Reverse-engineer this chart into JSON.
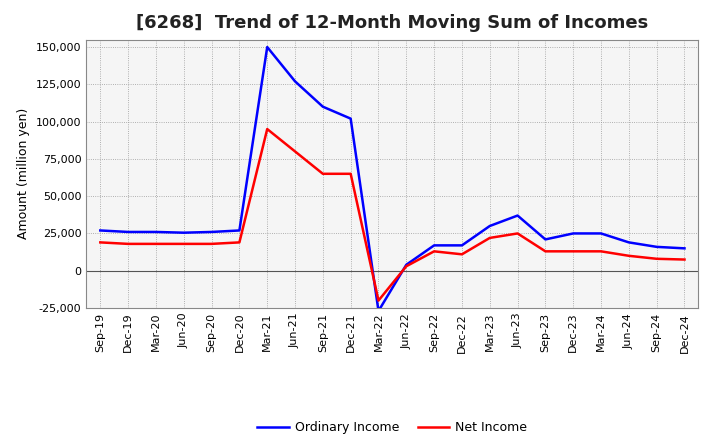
{
  "title": "[6268]  Trend of 12-Month Moving Sum of Incomes",
  "ylabel": "Amount (million yen)",
  "background_color": "#ffffff",
  "plot_bg_color": "#f5f5f5",
  "grid_color": "#999999",
  "ylim": [
    -25000,
    155000
  ],
  "yticks": [
    -25000,
    0,
    25000,
    50000,
    75000,
    100000,
    125000,
    150000
  ],
  "x_labels": [
    "Sep-19",
    "Dec-19",
    "Mar-20",
    "Jun-20",
    "Sep-20",
    "Dec-20",
    "Mar-21",
    "Jun-21",
    "Sep-21",
    "Dec-21",
    "Mar-22",
    "Jun-22",
    "Sep-22",
    "Dec-22",
    "Mar-23",
    "Jun-23",
    "Sep-23",
    "Dec-23",
    "Mar-24",
    "Jun-24",
    "Sep-24",
    "Dec-24"
  ],
  "ordinary_income": [
    27000,
    26000,
    26000,
    25500,
    26000,
    27000,
    150000,
    127000,
    110000,
    102000,
    -27000,
    4000,
    17000,
    17000,
    30000,
    37000,
    21000,
    25000,
    25000,
    19000,
    16000,
    15000
  ],
  "net_income": [
    19000,
    18000,
    18000,
    18000,
    18000,
    19000,
    95000,
    80000,
    65000,
    65000,
    -20000,
    3000,
    13000,
    11000,
    22000,
    25000,
    13000,
    13000,
    13000,
    10000,
    8000,
    7500
  ],
  "ordinary_color": "#0000ff",
  "net_color": "#ff0000",
  "line_width": 1.8,
  "title_fontsize": 13,
  "axis_fontsize": 9,
  "tick_fontsize": 8,
  "legend_fontsize": 9
}
